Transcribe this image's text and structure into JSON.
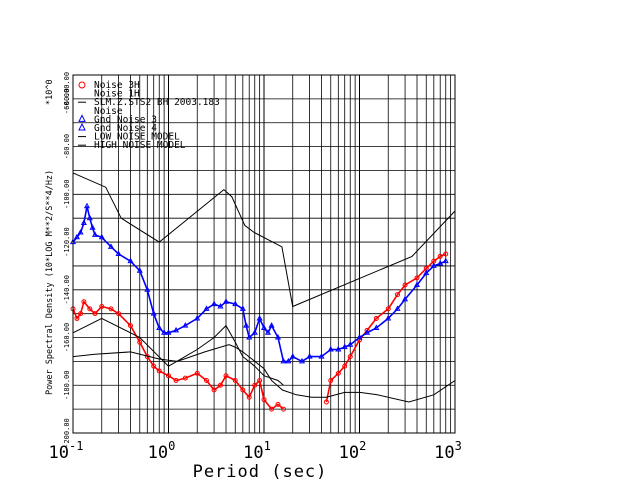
{
  "chart_data": {
    "type": "line",
    "xlabel": "Period (sec)",
    "ylabel": "Power Spectral Density (10*LOG M**2/S**4/Hz)",
    "y_multiplier": "*10^0",
    "x_scale": "log",
    "xlim": [
      0.1,
      1000
    ],
    "ylim": [
      -200,
      -50
    ],
    "x_ticks": [
      {
        "base": "10",
        "exp": "-1",
        "value": 0.1
      },
      {
        "base": "10",
        "exp": "0",
        "value": 1
      },
      {
        "base": "10",
        "exp": "1",
        "value": 10
      },
      {
        "base": "10",
        "exp": "2",
        "value": 100
      },
      {
        "base": "10",
        "exp": "3",
        "value": 1000
      }
    ],
    "y_ticks": [
      "-60.0",
      "-80.00",
      "-100.00",
      "-120.00",
      "-140.00",
      "-160.00",
      "-180.00",
      "-200.00"
    ],
    "y_tick_values": [
      -60,
      -80,
      -100,
      -120,
      -140,
      -160,
      -180,
      -200
    ],
    "y_top_tick": "-60.000.00",
    "grid": true,
    "legend_position": "top-left",
    "legend": [
      {
        "symbol": "circle",
        "color": "#ff0000",
        "text": "Noise 3H"
      },
      {
        "symbol": "none",
        "color": "#000000",
        "text": "Noise 1H"
      },
      {
        "symbol": "line",
        "color": "#000000",
        "text": "SLM.Z.STS2 BH  2003.183"
      },
      {
        "symbol": "none",
        "color": "#000000",
        "text": "Noise"
      },
      {
        "symbol": "triangle",
        "color": "#0000ff",
        "text": "Gnd Noise 3"
      },
      {
        "symbol": "triangle",
        "color": "#0000ff",
        "text": "Gnd Noise 4"
      },
      {
        "symbol": "line",
        "color": "#000000",
        "text": "LOW NOISE MODEL"
      },
      {
        "symbol": "line",
        "color": "#000000",
        "text": "HIGH NOISE MODEL"
      }
    ],
    "series": [
      {
        "name": "Noise 3H",
        "color": "#ff0000",
        "marker": "circle",
        "x": [
          0.1,
          0.11,
          0.12,
          0.13,
          0.15,
          0.17,
          0.2,
          0.25,
          0.3,
          0.4,
          0.5,
          0.6,
          0.7,
          0.8,
          1.0,
          1.2,
          1.5,
          2.0,
          2.5,
          3.0,
          3.5,
          4.0,
          5.0,
          6.0,
          7.0,
          8.0,
          9.0,
          10.0,
          12.0,
          14.0,
          16.0,
          45,
          50,
          60,
          70,
          80,
          100,
          120,
          150,
          200,
          250,
          300,
          400,
          500,
          600,
          700,
          800
        ],
        "y": [
          -148,
          -152,
          -150,
          -145,
          -148,
          -150,
          -147,
          -148,
          -150,
          -155,
          -162,
          -168,
          -172,
          -174,
          -176,
          -178,
          -177,
          -175,
          -178,
          -182,
          -180,
          -176,
          -178,
          -182,
          -185,
          -180,
          -178,
          -186,
          -190,
          -188,
          -190,
          -187,
          -178,
          -175,
          -172,
          -168,
          -161,
          -157,
          -152,
          -148,
          -142,
          -138,
          -135,
          -131,
          -128,
          -126,
          -125
        ]
      },
      {
        "name": "Gnd Noise 3",
        "color": "#0000ff",
        "marker": "triangle",
        "x": [
          0.1,
          0.11,
          0.12,
          0.13,
          0.14,
          0.15,
          0.16,
          0.17,
          0.2,
          0.25,
          0.3,
          0.4,
          0.5,
          0.6,
          0.7,
          0.8,
          0.9,
          1.0,
          1.2,
          1.5,
          2.0,
          2.5,
          3.0,
          3.5,
          4.0,
          5.0,
          6.0,
          6.5,
          7.0,
          8.0,
          9.0,
          10.0,
          11.0,
          12.0,
          14.0,
          16.0,
          18.0,
          20.0,
          25.0,
          30.0,
          40.0,
          50.0,
          60.0,
          70.0,
          80.0,
          100,
          120,
          150,
          200,
          250,
          300,
          400,
          500,
          600,
          700,
          800
        ],
        "y": [
          -120,
          -118,
          -116,
          -112,
          -105,
          -110,
          -114,
          -117,
          -118,
          -122,
          -125,
          -128,
          -132,
          -140,
          -150,
          -156,
          -158,
          -158,
          -157,
          -155,
          -152,
          -148,
          -146,
          -147,
          -145,
          -146,
          -148,
          -155,
          -160,
          -158,
          -152,
          -156,
          -158,
          -155,
          -160,
          -170,
          -170,
          -168,
          -170,
          -168,
          -168,
          -165,
          -165,
          -164,
          -163,
          -160,
          -158,
          -156,
          -152,
          -148,
          -144,
          -138,
          -133,
          -130,
          -129,
          -128
        ]
      },
      {
        "name": "LOW NOISE MODEL",
        "color": "#000000",
        "marker": "none",
        "x": [
          0.1,
          0.17,
          0.4,
          0.8,
          1.24,
          2.4,
          4.3,
          5.0,
          6.0,
          10.0,
          12.0,
          15.6,
          21.9,
          31.6,
          45.0,
          70.0,
          101,
          154,
          328,
          600,
          1000
        ],
        "y": [
          -168,
          -167,
          -166,
          -169,
          -170,
          -166,
          -163,
          -164,
          -166,
          -173,
          -178,
          -182,
          -184,
          -185,
          -185,
          -183,
          -183,
          -184,
          -187,
          -184,
          -178
        ]
      },
      {
        "name": "HIGH NOISE MODEL",
        "color": "#000000",
        "marker": "none",
        "x": [
          0.1,
          0.22,
          0.32,
          0.8,
          3.8,
          4.6,
          6.3,
          7.9,
          15.4,
          20.0,
          354.8,
          1000
        ],
        "y": [
          -91,
          -97,
          -110,
          -120,
          -98,
          -101,
          -113,
          -116,
          -122,
          -147,
          -126,
          -107
        ]
      },
      {
        "name": "Noise 1H",
        "color": "#000000",
        "marker": "none",
        "x": [
          0.1,
          0.2,
          0.5,
          1.0,
          2.0,
          3.0,
          4.0,
          5.0,
          6.0,
          8.0,
          10.0,
          14.0,
          16.0
        ],
        "y": [
          -158,
          -152,
          -160,
          -172,
          -165,
          -160,
          -155,
          -162,
          -168,
          -172,
          -176,
          -178,
          -180
        ]
      }
    ]
  }
}
